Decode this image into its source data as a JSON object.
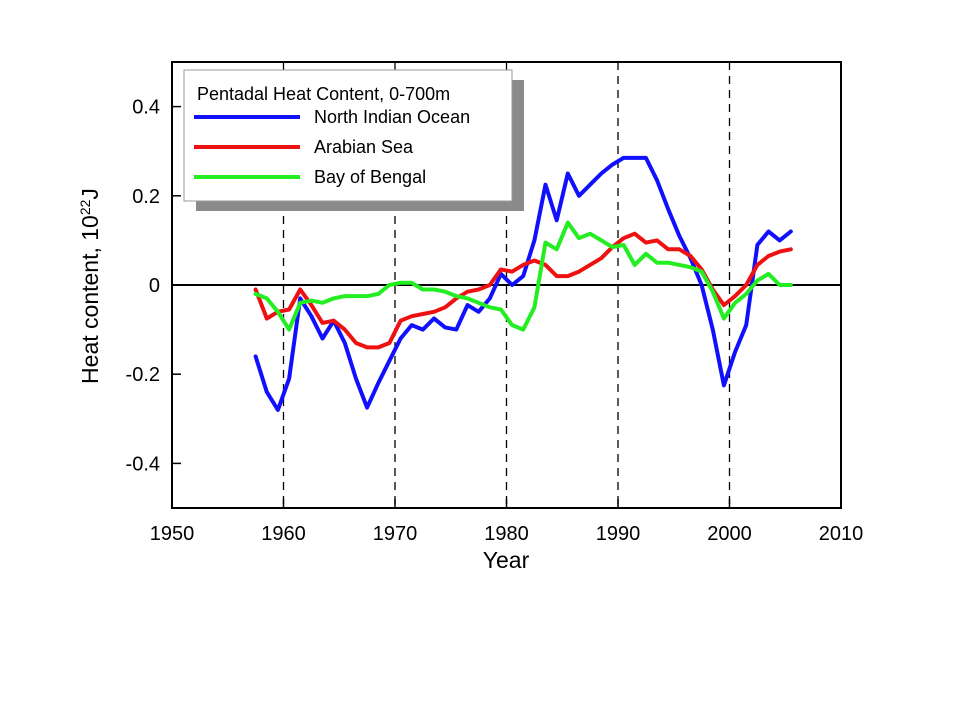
{
  "chart_data": {
    "type": "line",
    "title": "",
    "xlabel": "Year",
    "ylabel": "Heat content,",
    "ylabel_unit": "10",
    "ylabel_exp": "22",
    "ylabel_suffix": "J",
    "xlim": [
      1950,
      2010
    ],
    "ylim": [
      -0.5,
      0.5
    ],
    "x_ticks": [
      1950,
      1960,
      1970,
      1980,
      1990,
      2000,
      2010
    ],
    "x_tick_labels": [
      "1950",
      "1960",
      "1970",
      "1980",
      "1990",
      "2000",
      "2010"
    ],
    "y_ticks": [
      -0.4,
      -0.2,
      0,
      0.2,
      0.4
    ],
    "y_tick_labels": [
      "-0.4",
      "-0.2",
      "0",
      "0.2",
      "0.4"
    ],
    "vertical_dashed_lines_at": [
      1960,
      1970,
      1980,
      1990,
      2000
    ],
    "zero_line": true,
    "legend": {
      "title": "Pentadal Heat Content, 0-700m",
      "placement": "top-left"
    },
    "series": [
      {
        "name": "North Indian Ocean",
        "color": "#1010ff",
        "x": [
          1957.5,
          1958.5,
          1959.5,
          1960.5,
          1961.5,
          1962.5,
          1963.5,
          1964.5,
          1965.5,
          1966.5,
          1967.5,
          1968.5,
          1969.5,
          1970.5,
          1971.5,
          1972.5,
          1973.5,
          1974.5,
          1975.5,
          1976.5,
          1977.5,
          1978.5,
          1979.5,
          1980.5,
          1981.5,
          1982.5,
          1983.5,
          1984.5,
          1985.5,
          1986.5,
          1987.5,
          1988.5,
          1989.5,
          1990.5,
          1991.5,
          1992.5,
          1993.5,
          1994.5,
          1995.5,
          1996.5,
          1997.5,
          1998.5,
          1999.5,
          2000.5,
          2001.5,
          2002.5,
          2003.5,
          2004.5,
          2005.5
        ],
        "values": [
          -0.16,
          -0.24,
          -0.28,
          -0.21,
          -0.03,
          -0.07,
          -0.12,
          -0.08,
          -0.13,
          -0.21,
          -0.275,
          -0.22,
          -0.17,
          -0.12,
          -0.09,
          -0.1,
          -0.075,
          -0.095,
          -0.1,
          -0.045,
          -0.06,
          -0.03,
          0.025,
          0.0,
          0.02,
          0.1,
          0.225,
          0.145,
          0.25,
          0.2,
          0.225,
          0.25,
          0.27,
          0.285,
          0.285,
          0.285,
          0.235,
          0.17,
          0.11,
          0.06,
          0.0,
          -0.1,
          -0.225,
          -0.15,
          -0.09,
          0.09,
          0.12,
          0.1,
          0.12
        ]
      },
      {
        "name": "Arabian Sea",
        "color": "#ee1111",
        "x": [
          1957.5,
          1958.5,
          1959.5,
          1960.5,
          1961.5,
          1962.5,
          1963.5,
          1964.5,
          1965.5,
          1966.5,
          1967.5,
          1968.5,
          1969.5,
          1970.5,
          1971.5,
          1972.5,
          1973.5,
          1974.5,
          1975.5,
          1976.5,
          1977.5,
          1978.5,
          1979.5,
          1980.5,
          1981.5,
          1982.5,
          1983.5,
          1984.5,
          1985.5,
          1986.5,
          1987.5,
          1988.5,
          1989.5,
          1990.5,
          1991.5,
          1992.5,
          1993.5,
          1994.5,
          1995.5,
          1996.5,
          1997.5,
          1998.5,
          1999.5,
          2000.5,
          2001.5,
          2002.5,
          2003.5,
          2004.5,
          2005.5
        ],
        "values": [
          -0.01,
          -0.075,
          -0.06,
          -0.055,
          -0.01,
          -0.045,
          -0.085,
          -0.08,
          -0.1,
          -0.13,
          -0.14,
          -0.14,
          -0.13,
          -0.08,
          -0.07,
          -0.065,
          -0.06,
          -0.05,
          -0.03,
          -0.015,
          -0.01,
          0.0,
          0.035,
          0.03,
          0.045,
          0.055,
          0.045,
          0.02,
          0.02,
          0.03,
          0.045,
          0.06,
          0.085,
          0.105,
          0.115,
          0.095,
          0.1,
          0.08,
          0.08,
          0.065,
          0.035,
          -0.01,
          -0.045,
          -0.025,
          0.0,
          0.045,
          0.065,
          0.075,
          0.08
        ]
      },
      {
        "name": "Bay of Bengal",
        "color": "#22ee22",
        "x": [
          1957.5,
          1958.5,
          1959.5,
          1960.5,
          1961.5,
          1962.5,
          1963.5,
          1964.5,
          1965.5,
          1966.5,
          1967.5,
          1968.5,
          1969.5,
          1970.5,
          1971.5,
          1972.5,
          1973.5,
          1974.5,
          1975.5,
          1976.5,
          1977.5,
          1978.5,
          1979.5,
          1980.5,
          1981.5,
          1982.5,
          1983.5,
          1984.5,
          1985.5,
          1986.5,
          1987.5,
          1988.5,
          1989.5,
          1990.5,
          1991.5,
          1992.5,
          1993.5,
          1994.5,
          1995.5,
          1996.5,
          1997.5,
          1998.5,
          1999.5,
          2000.5,
          2001.5,
          2002.5,
          2003.5,
          2004.5,
          2005.5
        ],
        "values": [
          -0.02,
          -0.03,
          -0.06,
          -0.1,
          -0.04,
          -0.035,
          -0.04,
          -0.03,
          -0.025,
          -0.025,
          -0.025,
          -0.02,
          0.0,
          0.005,
          0.005,
          -0.01,
          -0.01,
          -0.015,
          -0.025,
          -0.03,
          -0.04,
          -0.05,
          -0.055,
          -0.09,
          -0.1,
          -0.05,
          0.095,
          0.08,
          0.14,
          0.105,
          0.115,
          0.1,
          0.085,
          0.09,
          0.045,
          0.07,
          0.05,
          0.05,
          0.045,
          0.04,
          0.03,
          -0.015,
          -0.075,
          -0.04,
          -0.02,
          0.01,
          0.025,
          0.0,
          0.0
        ]
      }
    ]
  }
}
